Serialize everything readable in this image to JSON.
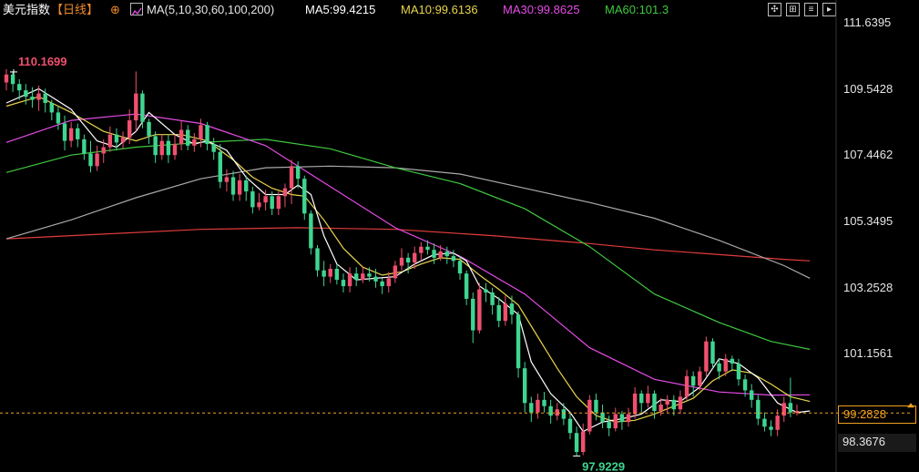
{
  "header": {
    "title": "美元指数",
    "period": "【日线】",
    "circle_icon": "⊕",
    "ma_params": "MA(5,10,30,60,100,200)",
    "ma5": "MA5:99.4215",
    "ma10": "MA10:99.6136",
    "ma30": "MA30:99.8625",
    "ma60": "MA60:101.3"
  },
  "controls": [
    "crosshair-icon",
    "compare-icon",
    "indicator-icon",
    "forward-icon"
  ],
  "colors": {
    "up": "#f0506e",
    "down": "#3fd590",
    "ma5": "#ffffff",
    "ma10": "#e8d44d",
    "ma30": "#e64ce6",
    "ma60": "#3fc93f",
    "ma100": "#aaaaaa",
    "ma200": "#e03c3c",
    "current_line": "#f0a020"
  },
  "chart_data": {
    "type": "candlestick",
    "y_ticks": [
      "111.6395",
      "109.5428",
      "107.4462",
      "105.3495",
      "103.2528",
      "101.1561"
    ],
    "ylim": [
      98.3676,
      111.6395
    ],
    "high_label": "110.1699",
    "low_label": "97.9229",
    "current_price": "99.2828",
    "bottom_label": "98.3676",
    "candles": [
      [
        109.75,
        110.0,
        110.17,
        109.5
      ],
      [
        110.0,
        109.7,
        110.1,
        109.45
      ],
      [
        109.7,
        109.5,
        109.85,
        109.2
      ],
      [
        109.5,
        109.3,
        109.7,
        109.05
      ],
      [
        109.3,
        109.2,
        109.6,
        108.95
      ],
      [
        109.2,
        109.4,
        109.65,
        108.85
      ],
      [
        109.4,
        109.1,
        109.55,
        108.8
      ],
      [
        109.1,
        108.8,
        109.2,
        108.55
      ],
      [
        108.8,
        108.45,
        109.0,
        108.25
      ],
      [
        108.45,
        107.9,
        108.7,
        107.6
      ],
      [
        107.9,
        108.3,
        108.5,
        107.7
      ],
      [
        108.3,
        107.95,
        108.45,
        107.7
      ],
      [
        107.95,
        107.5,
        108.1,
        107.3
      ],
      [
        107.5,
        107.1,
        107.9,
        106.9
      ],
      [
        107.1,
        107.5,
        107.75,
        106.95
      ],
      [
        107.5,
        107.7,
        107.95,
        107.2
      ],
      [
        107.7,
        108.1,
        108.35,
        107.55
      ],
      [
        108.1,
        107.85,
        108.3,
        107.6
      ],
      [
        107.85,
        108.0,
        108.2,
        107.65
      ],
      [
        108.0,
        108.55,
        108.9,
        107.8
      ],
      [
        108.55,
        109.4,
        110.1,
        108.2
      ],
      [
        109.4,
        108.5,
        109.5,
        108.3
      ],
      [
        108.5,
        108.05,
        108.6,
        107.8
      ],
      [
        108.05,
        107.45,
        108.2,
        107.2
      ],
      [
        107.45,
        107.9,
        108.1,
        107.3
      ],
      [
        107.9,
        107.45,
        108.1,
        107.2
      ],
      [
        107.45,
        107.8,
        108.1,
        107.3
      ],
      [
        107.8,
        108.25,
        108.55,
        107.6
      ],
      [
        108.25,
        107.75,
        108.4,
        107.6
      ],
      [
        107.75,
        107.95,
        108.15,
        107.55
      ],
      [
        107.95,
        108.4,
        108.6,
        107.7
      ],
      [
        108.4,
        107.8,
        108.5,
        107.6
      ],
      [
        107.8,
        107.55,
        108.0,
        107.3
      ],
      [
        107.55,
        106.6,
        107.8,
        106.4
      ],
      [
        106.6,
        106.75,
        107.0,
        106.3
      ],
      [
        106.75,
        106.2,
        106.95,
        106.0
      ],
      [
        106.2,
        106.65,
        106.85,
        106.0
      ],
      [
        106.65,
        106.3,
        106.8,
        106.0
      ],
      [
        106.3,
        105.8,
        106.45,
        105.6
      ],
      [
        105.8,
        105.95,
        106.25,
        105.7
      ],
      [
        105.95,
        106.15,
        106.35,
        105.7
      ],
      [
        106.15,
        105.75,
        106.3,
        105.55
      ],
      [
        105.75,
        106.15,
        106.3,
        105.55
      ],
      [
        106.15,
        106.4,
        106.55,
        105.8
      ],
      [
        106.4,
        107.1,
        107.3,
        105.9
      ],
      [
        107.1,
        106.7,
        107.25,
        106.4
      ],
      [
        106.7,
        105.6,
        106.8,
        105.4
      ],
      [
        105.6,
        104.5,
        105.7,
        104.3
      ],
      [
        104.5,
        103.8,
        104.6,
        103.6
      ],
      [
        103.8,
        103.6,
        104.1,
        103.3
      ],
      [
        103.6,
        103.85,
        104.0,
        103.4
      ],
      [
        103.85,
        103.5,
        104.0,
        103.35
      ],
      [
        103.5,
        103.3,
        103.7,
        103.1
      ],
      [
        103.3,
        103.7,
        103.9,
        103.1
      ],
      [
        103.7,
        103.5,
        103.9,
        103.3
      ],
      [
        103.5,
        103.7,
        103.9,
        103.4
      ],
      [
        103.7,
        103.6,
        103.9,
        103.45
      ],
      [
        103.6,
        103.45,
        103.85,
        103.25
      ],
      [
        103.45,
        103.3,
        103.55,
        103.05
      ],
      [
        103.3,
        103.55,
        103.75,
        103.1
      ],
      [
        103.55,
        103.95,
        104.1,
        103.4
      ],
      [
        103.95,
        104.2,
        104.5,
        103.8
      ],
      [
        104.2,
        104.05,
        104.35,
        103.7
      ],
      [
        104.05,
        104.35,
        104.55,
        103.85
      ],
      [
        104.35,
        104.55,
        104.7,
        104.1
      ],
      [
        104.55,
        104.45,
        104.75,
        104.3
      ],
      [
        104.45,
        104.2,
        104.65,
        104.0
      ],
      [
        104.2,
        104.4,
        104.6,
        104.1
      ],
      [
        104.4,
        104.25,
        104.55,
        104.0
      ],
      [
        104.25,
        104.1,
        104.45,
        103.9
      ],
      [
        104.1,
        103.7,
        104.25,
        103.5
      ],
      [
        103.7,
        102.9,
        103.8,
        102.7
      ],
      [
        102.9,
        101.9,
        103.1,
        101.5
      ],
      [
        101.9,
        103.2,
        103.4,
        101.8
      ],
      [
        103.2,
        103.1,
        103.4,
        102.8
      ],
      [
        103.1,
        102.7,
        103.25,
        102.4
      ],
      [
        102.7,
        102.2,
        102.95,
        102.0
      ],
      [
        102.2,
        102.75,
        103.0,
        102.05
      ],
      [
        102.75,
        102.4,
        103.0,
        102.1
      ],
      [
        102.4,
        100.7,
        102.5,
        100.4
      ],
      [
        100.7,
        99.6,
        100.9,
        99.3
      ],
      [
        99.6,
        99.3,
        99.8,
        99.0
      ],
      [
        99.3,
        99.7,
        99.9,
        99.1
      ],
      [
        99.7,
        99.5,
        99.95,
        99.3
      ],
      [
        99.5,
        99.2,
        99.7,
        98.95
      ],
      [
        99.2,
        99.4,
        99.6,
        99.05
      ],
      [
        99.4,
        99.1,
        99.6,
        98.9
      ],
      [
        99.1,
        98.65,
        99.3,
        98.45
      ],
      [
        98.65,
        98.05,
        98.85,
        97.92
      ],
      [
        98.05,
        98.7,
        98.95,
        97.95
      ],
      [
        98.7,
        99.7,
        99.85,
        98.6
      ],
      [
        99.7,
        99.3,
        99.9,
        99.05
      ],
      [
        99.3,
        99.0,
        99.55,
        98.8
      ],
      [
        99.0,
        98.8,
        99.2,
        98.55
      ],
      [
        98.8,
        99.25,
        99.45,
        98.7
      ],
      [
        99.25,
        99.0,
        99.35,
        98.75
      ],
      [
        99.0,
        99.25,
        99.45,
        98.85
      ],
      [
        99.25,
        99.9,
        100.1,
        99.1
      ],
      [
        99.9,
        99.6,
        100.0,
        99.3
      ],
      [
        99.6,
        99.9,
        100.15,
        99.45
      ],
      [
        99.9,
        99.35,
        100.0,
        99.1
      ],
      [
        99.35,
        99.55,
        99.75,
        99.2
      ],
      [
        99.55,
        99.7,
        99.85,
        99.3
      ],
      [
        99.7,
        99.4,
        99.85,
        99.2
      ],
      [
        99.4,
        99.8,
        100.0,
        99.25
      ],
      [
        99.8,
        100.45,
        100.65,
        99.7
      ],
      [
        100.45,
        100.15,
        100.6,
        99.8
      ],
      [
        100.15,
        100.6,
        100.75,
        100.0
      ],
      [
        100.6,
        101.55,
        101.7,
        100.45
      ],
      [
        101.55,
        100.85,
        101.65,
        100.7
      ],
      [
        100.85,
        100.6,
        101.0,
        100.35
      ],
      [
        100.6,
        101.0,
        101.15,
        100.45
      ],
      [
        101.0,
        100.85,
        101.1,
        100.6
      ],
      [
        100.85,
        100.35,
        101.0,
        100.15
      ],
      [
        100.35,
        100.0,
        100.5,
        99.8
      ],
      [
        100.0,
        99.7,
        100.2,
        99.45
      ],
      [
        99.7,
        99.1,
        99.85,
        98.9
      ],
      [
        99.1,
        98.85,
        99.3,
        98.7
      ],
      [
        98.85,
        98.75,
        99.05,
        98.55
      ],
      [
        98.75,
        99.2,
        99.4,
        98.55
      ],
      [
        99.2,
        99.6,
        99.8,
        99.0
      ],
      [
        99.6,
        99.3,
        100.4,
        99.15
      ],
      [
        99.3,
        99.35,
        99.55,
        99.2
      ]
    ],
    "ma_lines": {
      "ma5": [
        [
          0,
          109.1
        ],
        [
          5,
          109.55
        ],
        [
          10,
          108.9
        ],
        [
          14,
          107.9
        ],
        [
          17,
          107.7
        ],
        [
          20,
          108.2
        ],
        [
          22,
          108.8
        ],
        [
          26,
          108.1
        ],
        [
          29,
          107.8
        ],
        [
          31,
          107.9
        ],
        [
          34,
          107.6
        ],
        [
          37,
          106.75
        ],
        [
          40,
          106.2
        ],
        [
          43,
          106.2
        ],
        [
          45,
          106.5
        ],
        [
          47,
          106.2
        ],
        [
          49,
          104.9
        ],
        [
          51,
          104.0
        ],
        [
          54,
          103.5
        ],
        [
          57,
          103.55
        ],
        [
          60,
          103.6
        ],
        [
          63,
          104.0
        ],
        [
          66,
          104.3
        ],
        [
          69,
          104.35
        ],
        [
          71,
          104.1
        ],
        [
          73,
          103.3
        ],
        [
          76,
          102.9
        ],
        [
          79,
          102.4
        ],
        [
          81,
          100.9
        ],
        [
          84,
          99.9
        ],
        [
          87,
          99.3
        ],
        [
          89,
          98.7
        ],
        [
          92,
          99.0
        ],
        [
          95,
          99.1
        ],
        [
          98,
          99.25
        ],
        [
          101,
          99.7
        ],
        [
          104,
          99.65
        ],
        [
          107,
          100.1
        ],
        [
          110,
          101.0
        ],
        [
          113,
          100.85
        ],
        [
          116,
          100.4
        ],
        [
          119,
          99.6
        ],
        [
          122,
          99.3
        ],
        [
          124,
          99.35
        ]
      ],
      "ma10": [
        [
          0,
          109.0
        ],
        [
          5,
          109.3
        ],
        [
          10,
          108.8
        ],
        [
          15,
          108.2
        ],
        [
          20,
          107.9
        ],
        [
          23,
          108.1
        ],
        [
          27,
          108.1
        ],
        [
          31,
          107.9
        ],
        [
          35,
          107.3
        ],
        [
          38,
          106.75
        ],
        [
          41,
          106.4
        ],
        [
          44,
          106.2
        ],
        [
          46,
          106.15
        ],
        [
          49,
          105.4
        ],
        [
          52,
          104.5
        ],
        [
          55,
          103.9
        ],
        [
          58,
          103.65
        ],
        [
          61,
          103.75
        ],
        [
          64,
          104.0
        ],
        [
          67,
          104.2
        ],
        [
          70,
          104.15
        ],
        [
          73,
          103.65
        ],
        [
          76,
          103.2
        ],
        [
          79,
          102.7
        ],
        [
          82,
          101.7
        ],
        [
          85,
          100.7
        ],
        [
          88,
          99.8
        ],
        [
          91,
          99.2
        ],
        [
          94,
          99.0
        ],
        [
          97,
          99.05
        ],
        [
          100,
          99.25
        ],
        [
          103,
          99.5
        ],
        [
          106,
          99.75
        ],
        [
          109,
          100.3
        ],
        [
          112,
          100.65
        ],
        [
          115,
          100.55
        ],
        [
          118,
          100.2
        ],
        [
          121,
          99.8
        ],
        [
          124,
          99.65
        ]
      ],
      "ma30": [
        [
          0,
          107.85
        ],
        [
          10,
          108.55
        ],
        [
          20,
          108.75
        ],
        [
          30,
          108.45
        ],
        [
          40,
          107.75
        ],
        [
          50,
          106.45
        ],
        [
          60,
          105.15
        ],
        [
          70,
          104.25
        ],
        [
          80,
          103.05
        ],
        [
          90,
          101.35
        ],
        [
          100,
          100.35
        ],
        [
          110,
          99.95
        ],
        [
          118,
          99.85
        ],
        [
          124,
          99.86
        ]
      ],
      "ma60": [
        [
          0,
          106.9
        ],
        [
          10,
          107.45
        ],
        [
          20,
          107.7
        ],
        [
          30,
          107.85
        ],
        [
          40,
          107.95
        ],
        [
          50,
          107.65
        ],
        [
          60,
          107.05
        ],
        [
          70,
          106.55
        ],
        [
          80,
          105.75
        ],
        [
          90,
          104.55
        ],
        [
          100,
          103.05
        ],
        [
          110,
          102.15
        ],
        [
          118,
          101.55
        ],
        [
          124,
          101.3
        ]
      ],
      "ma100": [
        [
          0,
          104.8
        ],
        [
          10,
          105.4
        ],
        [
          20,
          106.1
        ],
        [
          30,
          106.7
        ],
        [
          40,
          107.05
        ],
        [
          50,
          107.1
        ],
        [
          60,
          107.05
        ],
        [
          70,
          106.85
        ],
        [
          80,
          106.4
        ],
        [
          90,
          105.95
        ],
        [
          100,
          105.45
        ],
        [
          110,
          104.75
        ],
        [
          120,
          103.95
        ],
        [
          124,
          103.55
        ]
      ],
      "ma200": [
        [
          0,
          104.8
        ],
        [
          15,
          104.95
        ],
        [
          30,
          105.1
        ],
        [
          45,
          105.15
        ],
        [
          60,
          105.1
        ],
        [
          75,
          104.9
        ],
        [
          90,
          104.65
        ],
        [
          100,
          104.45
        ],
        [
          110,
          104.3
        ],
        [
          120,
          104.15
        ],
        [
          124,
          104.1
        ]
      ]
    }
  }
}
